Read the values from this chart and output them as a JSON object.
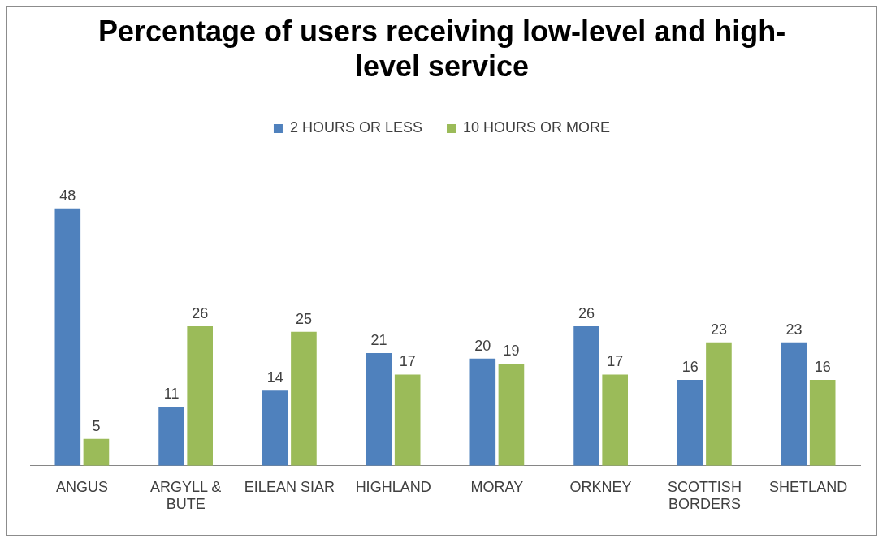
{
  "chart_data": {
    "type": "bar",
    "title": "Percentage of users receiving low-level and high-level service",
    "categories": [
      "ANGUS",
      "ARGYLL & BUTE",
      "EILEAN SIAR",
      "HIGHLAND",
      "MORAY",
      "ORKNEY",
      "SCOTTISH BORDERS",
      "SHETLAND"
    ],
    "series": [
      {
        "name": "2 HOURS OR LESS",
        "color": "#4f81bd",
        "values": [
          48,
          11,
          14,
          21,
          20,
          26,
          16,
          23
        ]
      },
      {
        "name": "10 HOURS OR MORE",
        "color": "#9bbb59",
        "values": [
          5,
          26,
          25,
          17,
          19,
          17,
          23,
          16
        ]
      }
    ],
    "relative": false,
    "data_labels": true,
    "legend": "top",
    "grid": false
  }
}
